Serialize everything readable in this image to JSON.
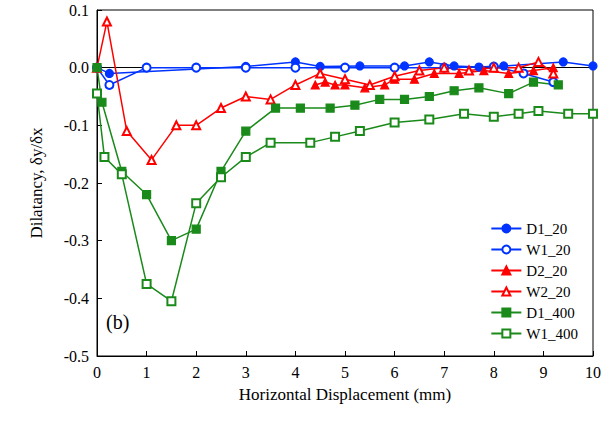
{
  "chart_data": {
    "type": "line",
    "x_label": "Horizontal Displacement (mm)",
    "y_label": "Dilatancy, δy/δx",
    "annotations": [
      "(b)"
    ],
    "xlim": [
      0,
      10
    ],
    "xticks": [
      0,
      1,
      2,
      3,
      4,
      5,
      6,
      7,
      8,
      9,
      10
    ],
    "ylim": [
      -0.5,
      0.1
    ],
    "yticks": [
      -0.5,
      -0.4,
      -0.3,
      -0.2,
      -0.1,
      {
        "value": 0,
        "label": "0.0"
      },
      0.1
    ],
    "grid": false,
    "legend": "lower right",
    "series": [
      {
        "name": "D1_20",
        "color": "#0033ff",
        "marker": "circle",
        "x": [
          0,
          0.25,
          3,
          4,
          4.5,
          5.3,
          6.2,
          6.7,
          7.2,
          7.7,
          8.2,
          9.4,
          10
        ],
        "values": [
          0,
          -0.01,
          0.002,
          0.01,
          0.002,
          0.003,
          0.003,
          0.01,
          0.003,
          0.001,
          0.003,
          0.01,
          0.003
        ]
      },
      {
        "name": "W1_20",
        "color": "#0033ff",
        "marker": "open_circle",
        "x": [
          0,
          0.25,
          1,
          2,
          3,
          4,
          5,
          6,
          7,
          8,
          8.6,
          9.2
        ],
        "values": [
          0,
          -0.03,
          0,
          0,
          0,
          0,
          0,
          0,
          0,
          0.002,
          -0.01,
          -0.025
        ]
      },
      {
        "name": "D2_20",
        "color": "#ff0000",
        "marker": "triangle",
        "x": [
          4.4,
          4.6,
          4.8,
          5.0,
          5.4,
          5.8,
          6.0,
          6.4,
          6.8,
          7.3,
          7.8,
          8.3,
          8.8,
          9.2
        ],
        "values": [
          -0.03,
          -0.025,
          -0.03,
          -0.03,
          -0.035,
          -0.03,
          -0.02,
          -0.02,
          -0.01,
          -0.01,
          -0.005,
          -0.01,
          -0.005,
          0
        ]
      },
      {
        "name": "W2_20",
        "color": "#ff0000",
        "marker": "open_triangle",
        "x": [
          0,
          0.2,
          0.6,
          1.1,
          1.6,
          2.0,
          2.5,
          3.0,
          3.5,
          4.0,
          4.5,
          5.0,
          5.5,
          6.0,
          6.5,
          7.0,
          7.5,
          8.0,
          8.5,
          8.9,
          9.2
        ],
        "values": [
          0,
          0.08,
          -0.11,
          -0.16,
          -0.1,
          -0.1,
          -0.07,
          -0.05,
          -0.055,
          -0.03,
          -0.01,
          -0.02,
          -0.03,
          -0.015,
          -0.005,
          0,
          -0.005,
          0,
          0,
          0.01,
          -0.01
        ]
      },
      {
        "name": "D1_400",
        "color": "#1a8a1a",
        "marker": "square",
        "x": [
          0,
          0.1,
          0.5,
          1,
          1.5,
          2,
          2.5,
          3,
          3.6,
          4.1,
          4.7,
          5.2,
          5.7,
          6.2,
          6.7,
          7.2,
          7.7,
          8.3,
          8.8,
          9.3
        ],
        "values": [
          0,
          -0.06,
          -0.18,
          -0.22,
          -0.3,
          -0.28,
          -0.18,
          -0.11,
          -0.07,
          -0.07,
          -0.07,
          -0.065,
          -0.055,
          -0.055,
          -0.05,
          -0.04,
          -0.035,
          -0.045,
          -0.025,
          -0.03
        ]
      },
      {
        "name": "W1_400",
        "color": "#1a8a1a",
        "marker": "open_square",
        "x": [
          0,
          0.15,
          0.5,
          1.0,
          1.5,
          2.0,
          2.5,
          3.0,
          3.5,
          4.3,
          4.8,
          5.3,
          6.0,
          6.7,
          7.4,
          8.0,
          8.5,
          8.9,
          9.5,
          10
        ],
        "values": [
          -0.045,
          -0.155,
          -0.185,
          -0.375,
          -0.405,
          -0.235,
          -0.19,
          -0.155,
          -0.13,
          -0.13,
          -0.12,
          -0.11,
          -0.095,
          -0.09,
          -0.08,
          -0.085,
          -0.08,
          -0.075,
          -0.08,
          -0.08
        ]
      }
    ]
  }
}
